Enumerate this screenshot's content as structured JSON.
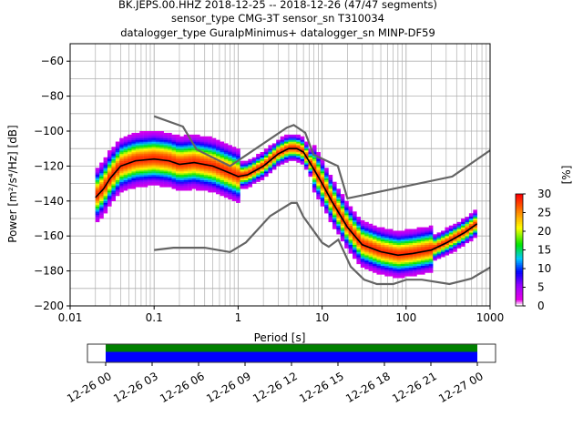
{
  "title_lines": [
    "BK.JEPS.00.HHZ   2018-12-25 -- 2018-12-26  (47/47 segments)",
    "sensor_type CMG-3T sensor_sn T310034",
    "datalogger_type GuralpMinimus+ datalogger_sn MINP-DF59"
  ],
  "chart_data": {
    "type": "heatmap",
    "xlabel": "Period [s]",
    "ylabel": "Power [m²/s⁴/Hz] [dB]",
    "xscale": "log",
    "xlim": [
      0.01,
      1000
    ],
    "ylim": [
      -200,
      -50
    ],
    "x_ticks": [
      "0.01",
      "0.1",
      "1",
      "10",
      "100",
      "1000"
    ],
    "y_ticks": [
      "−200",
      "−180",
      "−160",
      "−140",
      "−120",
      "−100",
      "−80",
      "−60"
    ],
    "grid": true,
    "colorbar": {
      "label": "[%]",
      "range": [
        0,
        30
      ],
      "ticks": [
        "0",
        "5",
        "10",
        "15",
        "20",
        "25",
        "30"
      ]
    },
    "mean_psd": [
      [
        0.02,
        -138
      ],
      [
        0.025,
        -133
      ],
      [
        0.03,
        -127
      ],
      [
        0.04,
        -120
      ],
      [
        0.06,
        -117
      ],
      [
        0.1,
        -116
      ],
      [
        0.15,
        -117
      ],
      [
        0.2,
        -119
      ],
      [
        0.3,
        -118
      ],
      [
        0.5,
        -120
      ],
      [
        0.8,
        -124
      ],
      [
        1.0,
        -126
      ],
      [
        1.3,
        -125
      ],
      [
        2.0,
        -120
      ],
      [
        3.0,
        -113
      ],
      [
        4.0,
        -110
      ],
      [
        5.0,
        -110
      ],
      [
        6.0,
        -112
      ],
      [
        8.0,
        -122
      ],
      [
        10,
        -130
      ],
      [
        13,
        -140
      ],
      [
        20,
        -155
      ],
      [
        30,
        -165
      ],
      [
        50,
        -169
      ],
      [
        80,
        -171
      ],
      [
        120,
        -170
      ],
      [
        200,
        -168
      ],
      [
        300,
        -164
      ],
      [
        500,
        -158
      ],
      [
        700,
        -153
      ]
    ],
    "high_noise_model": [
      [
        0.1,
        -91.5
      ],
      [
        0.22,
        -97.4
      ],
      [
        0.32,
        -110.5
      ],
      [
        0.8,
        -120
      ],
      [
        3.8,
        -98
      ],
      [
        4.6,
        -96.5
      ],
      [
        6.3,
        -101
      ],
      [
        7.9,
        -113.5
      ],
      [
        15.4,
        -120
      ],
      [
        20,
        -138.5
      ],
      [
        354.8,
        -126
      ],
      [
        1000,
        -111
      ]
    ],
    "low_noise_model": [
      [
        0.1,
        -168
      ],
      [
        0.17,
        -166.7
      ],
      [
        0.4,
        -166.7
      ],
      [
        0.8,
        -169.2
      ],
      [
        1.24,
        -163.7
      ],
      [
        2.4,
        -148.6
      ],
      [
        4.3,
        -141.1
      ],
      [
        5.0,
        -141.1
      ],
      [
        6.0,
        -149
      ],
      [
        10,
        -163.8
      ],
      [
        12,
        -166.2
      ],
      [
        15.6,
        -162.1
      ],
      [
        21.9,
        -177.5
      ],
      [
        31.6,
        -185
      ],
      [
        45,
        -187.5
      ],
      [
        70,
        -187.5
      ],
      [
        101,
        -185
      ],
      [
        154,
        -185
      ],
      [
        328,
        -187.5
      ],
      [
        600,
        -184.4
      ],
      [
        1000,
        -178
      ]
    ],
    "time_coverage": {
      "tick_labels": [
        "12-26 00",
        "12-26 03",
        "12-26 06",
        "12-26 09",
        "12-26 12",
        "12-26 15",
        "12-26 18",
        "12-26 21",
        "12-27 00"
      ],
      "colors": [
        "#008000",
        "#0000ff"
      ]
    }
  }
}
